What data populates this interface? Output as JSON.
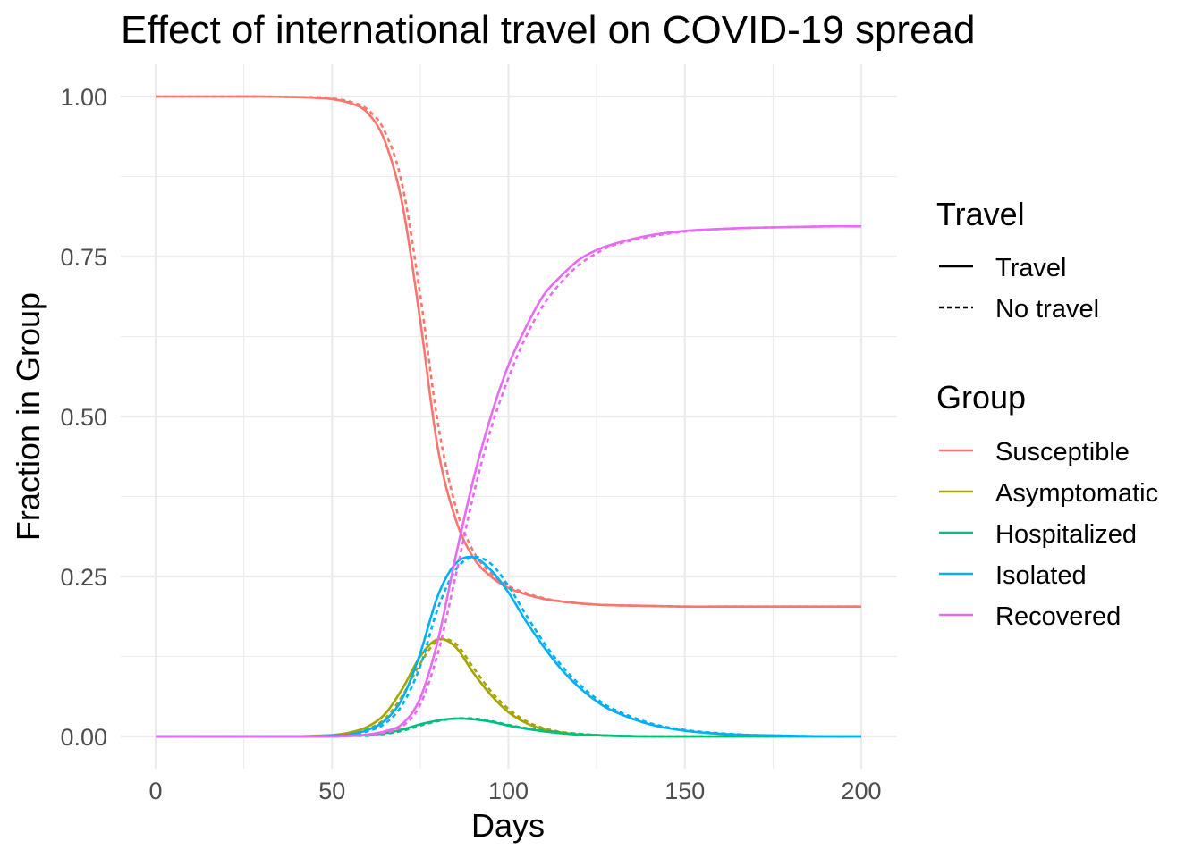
{
  "chart_data": {
    "type": "line",
    "title": "Effect of international travel on COVID-19 spread",
    "xlabel": "Days",
    "ylabel": "Fraction in Group",
    "xlim": [
      0,
      200
    ],
    "ylim": [
      0,
      1
    ],
    "x_ticks": [
      "0",
      "50",
      "100",
      "150",
      "200"
    ],
    "y_ticks": [
      "0.00",
      "0.25",
      "0.50",
      "0.75",
      "1.00"
    ],
    "grid": true,
    "legend_position": "right",
    "linetype_legend": {
      "title": "Travel",
      "items": [
        {
          "label": "Travel",
          "dash": "solid"
        },
        {
          "label": "No travel",
          "dash": "dashed"
        }
      ]
    },
    "color_legend": {
      "title": "Group",
      "items": [
        {
          "label": "Susceptible",
          "color": "#F8766D"
        },
        {
          "label": "Asymptomatic",
          "color": "#A3A500"
        },
        {
          "label": "Hospitalized",
          "color": "#00BF7D"
        },
        {
          "label": "Isolated",
          "color": "#00B0F6"
        },
        {
          "label": "Recovered",
          "color": "#E76BF3"
        }
      ]
    },
    "x": [
      0,
      10,
      20,
      30,
      40,
      45,
      50,
      55,
      60,
      65,
      70,
      75,
      80,
      85,
      90,
      95,
      100,
      105,
      110,
      115,
      120,
      125,
      130,
      140,
      150,
      160,
      170,
      180,
      190,
      200
    ],
    "series": [
      {
        "group": "Susceptible",
        "travel": "Travel",
        "values": [
          1.0,
          1.0,
          1.0,
          1.0,
          0.999,
          0.998,
          0.996,
          0.99,
          0.975,
          0.93,
          0.83,
          0.65,
          0.45,
          0.34,
          0.28,
          0.25,
          0.232,
          0.222,
          0.215,
          0.211,
          0.208,
          0.206,
          0.205,
          0.204,
          0.203,
          0.203,
          0.203,
          0.203,
          0.203,
          0.203
        ]
      },
      {
        "group": "Susceptible",
        "travel": "No travel",
        "values": [
          1.0,
          1.0,
          1.0,
          1.0,
          0.999,
          0.999,
          0.997,
          0.992,
          0.98,
          0.945,
          0.86,
          0.69,
          0.49,
          0.36,
          0.29,
          0.255,
          0.235,
          0.224,
          0.216,
          0.211,
          0.208,
          0.206,
          0.205,
          0.204,
          0.203,
          0.203,
          0.203,
          0.203,
          0.203,
          0.203
        ]
      },
      {
        "group": "Asymptomatic",
        "travel": "Travel",
        "values": [
          0,
          0,
          0,
          0,
          0.0,
          0.001,
          0.002,
          0.006,
          0.015,
          0.035,
          0.075,
          0.125,
          0.152,
          0.14,
          0.1,
          0.065,
          0.038,
          0.021,
          0.011,
          0.006,
          0.003,
          0.002,
          0.001,
          0.0,
          0,
          0,
          0,
          0,
          0,
          0
        ]
      },
      {
        "group": "Asymptomatic",
        "travel": "No travel",
        "values": [
          0,
          0,
          0,
          0,
          0.0,
          0.0,
          0.001,
          0.004,
          0.011,
          0.028,
          0.064,
          0.114,
          0.15,
          0.145,
          0.108,
          0.071,
          0.043,
          0.024,
          0.013,
          0.007,
          0.004,
          0.002,
          0.001,
          0.0,
          0,
          0,
          0,
          0,
          0,
          0
        ]
      },
      {
        "group": "Hospitalized",
        "travel": "Travel",
        "values": [
          0,
          0,
          0,
          0,
          0,
          0.0,
          0.0,
          0.001,
          0.002,
          0.005,
          0.011,
          0.019,
          0.025,
          0.028,
          0.027,
          0.023,
          0.017,
          0.012,
          0.008,
          0.005,
          0.003,
          0.002,
          0.001,
          0.0,
          0,
          0,
          0,
          0,
          0,
          0
        ]
      },
      {
        "group": "Hospitalized",
        "travel": "No travel",
        "values": [
          0,
          0,
          0,
          0,
          0,
          0.0,
          0.0,
          0.001,
          0.001,
          0.004,
          0.009,
          0.017,
          0.024,
          0.028,
          0.028,
          0.024,
          0.018,
          0.013,
          0.009,
          0.006,
          0.004,
          0.002,
          0.001,
          0.0,
          0,
          0,
          0,
          0,
          0,
          0
        ]
      },
      {
        "group": "Isolated",
        "travel": "Travel",
        "values": [
          0,
          0,
          0,
          0,
          0.0,
          0.0,
          0.001,
          0.003,
          0.01,
          0.025,
          0.06,
          0.13,
          0.22,
          0.27,
          0.28,
          0.26,
          0.225,
          0.18,
          0.14,
          0.105,
          0.077,
          0.055,
          0.039,
          0.019,
          0.009,
          0.004,
          0.002,
          0.001,
          0.0,
          0.0
        ]
      },
      {
        "group": "Isolated",
        "travel": "No travel",
        "values": [
          0,
          0,
          0,
          0,
          0.0,
          0.0,
          0.0,
          0.002,
          0.008,
          0.02,
          0.05,
          0.11,
          0.2,
          0.26,
          0.28,
          0.27,
          0.235,
          0.19,
          0.147,
          0.111,
          0.082,
          0.059,
          0.042,
          0.021,
          0.01,
          0.005,
          0.002,
          0.001,
          0.0,
          0.0
        ]
      },
      {
        "group": "Recovered",
        "travel": "Travel",
        "values": [
          0,
          0,
          0,
          0,
          0.0,
          0.0,
          0.0,
          0.001,
          0.003,
          0.008,
          0.02,
          0.06,
          0.15,
          0.28,
          0.4,
          0.5,
          0.58,
          0.64,
          0.69,
          0.72,
          0.745,
          0.76,
          0.77,
          0.783,
          0.79,
          0.793,
          0.795,
          0.796,
          0.797,
          0.797
        ]
      },
      {
        "group": "Recovered",
        "travel": "No travel",
        "values": [
          0,
          0,
          0,
          0,
          0.0,
          0.0,
          0.0,
          0.001,
          0.002,
          0.006,
          0.016,
          0.05,
          0.13,
          0.25,
          0.375,
          0.48,
          0.56,
          0.625,
          0.675,
          0.71,
          0.737,
          0.755,
          0.768,
          0.781,
          0.789,
          0.793,
          0.795,
          0.796,
          0.797,
          0.797
        ]
      }
    ]
  }
}
